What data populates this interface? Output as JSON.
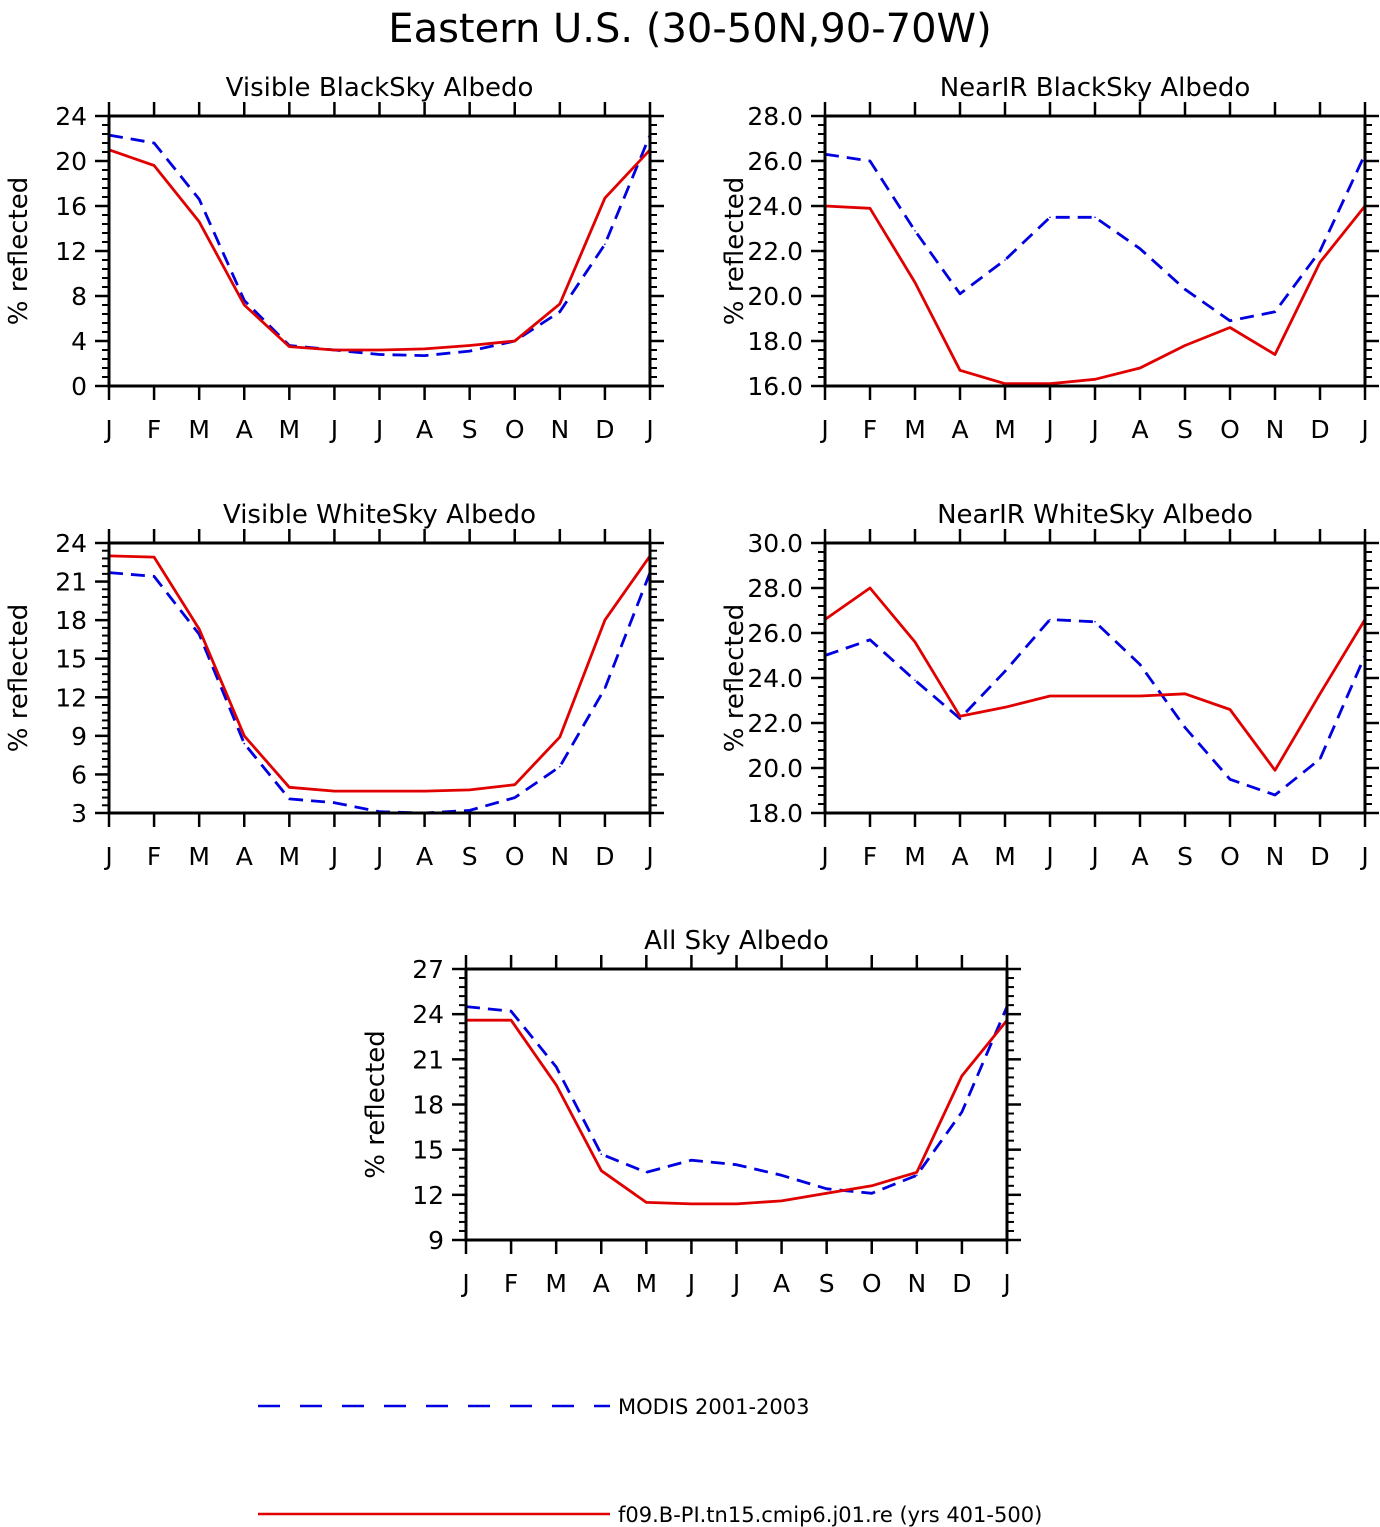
{
  "figure_title": "Eastern U.S. (30-50N,90-70W)",
  "legend": [
    {
      "label": "MODIS 2001-2003",
      "color": "#0000e0",
      "style": "dashed"
    },
    {
      "label": "f09.B-PI.tn15.cmip6.j01.re (yrs 401-500)",
      "color": "#e00000",
      "style": "solid"
    }
  ],
  "chart_data": [
    {
      "type": "line",
      "title": "Visible BlackSky Albedo",
      "xlabel": "",
      "ylabel": "% reflected",
      "categories": [
        "J",
        "F",
        "M",
        "A",
        "M",
        "J",
        "J",
        "A",
        "S",
        "O",
        "N",
        "D",
        "J"
      ],
      "ylim": [
        0,
        24
      ],
      "yticks": [
        "0",
        "4",
        "8",
        "12",
        "16",
        "20",
        "24"
      ],
      "series": [
        {
          "name": "MODIS 2001-2003",
          "color": "#0000e0",
          "dashed": true,
          "values": [
            22.3,
            21.6,
            16.6,
            7.6,
            3.6,
            3.2,
            2.8,
            2.7,
            3.1,
            4.0,
            6.6,
            12.6,
            22.3
          ]
        },
        {
          "name": "f09.B-PI.tn15.cmip6.j01.re (yrs 401-500)",
          "color": "#e00000",
          "dashed": false,
          "values": [
            21.0,
            19.6,
            14.6,
            7.2,
            3.5,
            3.2,
            3.2,
            3.3,
            3.6,
            4.0,
            7.3,
            16.7,
            21.0
          ]
        }
      ]
    },
    {
      "type": "line",
      "title": "NearIR BlackSky Albedo",
      "xlabel": "",
      "ylabel": "% reflected",
      "categories": [
        "J",
        "F",
        "M",
        "A",
        "M",
        "J",
        "J",
        "A",
        "S",
        "O",
        "N",
        "D",
        "J"
      ],
      "ylim": [
        16,
        28
      ],
      "yticks": [
        "16.0",
        "18.0",
        "20.0",
        "22.0",
        "24.0",
        "26.0",
        "28.0"
      ],
      "series": [
        {
          "name": "MODIS 2001-2003",
          "color": "#0000e0",
          "dashed": true,
          "values": [
            26.3,
            26.0,
            22.9,
            20.1,
            21.6,
            23.5,
            23.5,
            22.1,
            20.3,
            18.9,
            19.3,
            22.0,
            26.3
          ]
        },
        {
          "name": "f09.B-PI.tn15.cmip6.j01.re (yrs 401-500)",
          "color": "#e00000",
          "dashed": false,
          "values": [
            24.0,
            23.9,
            20.6,
            16.7,
            16.1,
            16.1,
            16.3,
            16.8,
            17.8,
            18.6,
            17.4,
            21.5,
            24.0
          ]
        }
      ]
    },
    {
      "type": "line",
      "title": "Visible WhiteSky Albedo",
      "xlabel": "",
      "ylabel": "% reflected",
      "categories": [
        "J",
        "F",
        "M",
        "A",
        "M",
        "J",
        "J",
        "A",
        "S",
        "O",
        "N",
        "D",
        "J"
      ],
      "ylim": [
        3,
        24
      ],
      "yticks": [
        "3",
        "6",
        "9",
        "12",
        "15",
        "18",
        "21",
        "24"
      ],
      "series": [
        {
          "name": "MODIS 2001-2003",
          "color": "#0000e0",
          "dashed": true,
          "values": [
            21.7,
            21.4,
            16.9,
            8.4,
            4.1,
            3.8,
            3.1,
            3.0,
            3.2,
            4.2,
            6.6,
            12.7,
            21.7
          ]
        },
        {
          "name": "f09.B-PI.tn15.cmip6.j01.re (yrs 401-500)",
          "color": "#e00000",
          "dashed": false,
          "values": [
            23.0,
            22.9,
            17.3,
            9.0,
            5.0,
            4.7,
            4.7,
            4.7,
            4.8,
            5.2,
            8.9,
            18.0,
            23.0
          ]
        }
      ]
    },
    {
      "type": "line",
      "title": "NearIR WhiteSky Albedo",
      "xlabel": "",
      "ylabel": "% reflected",
      "categories": [
        "J",
        "F",
        "M",
        "A",
        "M",
        "J",
        "J",
        "A",
        "S",
        "O",
        "N",
        "D",
        "J"
      ],
      "ylim": [
        18,
        30
      ],
      "yticks": [
        "18.0",
        "20.0",
        "22.0",
        "24.0",
        "26.0",
        "28.0",
        "30.0"
      ],
      "series": [
        {
          "name": "MODIS 2001-2003",
          "color": "#0000e0",
          "dashed": true,
          "values": [
            25.0,
            25.7,
            23.9,
            22.2,
            24.3,
            26.6,
            26.5,
            24.6,
            21.8,
            19.5,
            18.8,
            20.4,
            25.0
          ]
        },
        {
          "name": "f09.B-PI.tn15.cmip6.j01.re (yrs 401-500)",
          "color": "#e00000",
          "dashed": false,
          "values": [
            26.6,
            28.0,
            25.6,
            22.3,
            22.7,
            23.2,
            23.2,
            23.2,
            23.3,
            22.6,
            19.9,
            23.3,
            26.6
          ]
        }
      ]
    },
    {
      "type": "line",
      "title": "All Sky Albedo",
      "xlabel": "",
      "ylabel": "% reflected",
      "categories": [
        "J",
        "F",
        "M",
        "A",
        "M",
        "J",
        "J",
        "A",
        "S",
        "O",
        "N",
        "D",
        "J"
      ],
      "ylim": [
        9,
        27
      ],
      "yticks": [
        "9",
        "12",
        "15",
        "18",
        "21",
        "24",
        "27"
      ],
      "series": [
        {
          "name": "MODIS 2001-2003",
          "color": "#0000e0",
          "dashed": true,
          "values": [
            24.5,
            24.2,
            20.5,
            14.7,
            13.5,
            14.3,
            14.0,
            13.3,
            12.4,
            12.1,
            13.3,
            17.5,
            24.5
          ]
        },
        {
          "name": "f09.B-PI.tn15.cmip6.j01.re (yrs 401-500)",
          "color": "#e00000",
          "dashed": false,
          "values": [
            23.6,
            23.6,
            19.3,
            13.6,
            11.5,
            11.4,
            11.4,
            11.6,
            12.1,
            12.6,
            13.5,
            19.9,
            23.6
          ]
        }
      ]
    }
  ]
}
